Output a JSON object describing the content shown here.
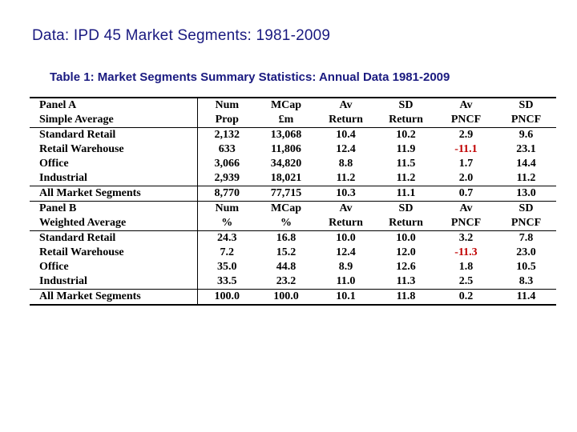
{
  "title": "Data: IPD 45 Market Segments: 1981-2009",
  "caption": "Table 1: Market Segments Summary Statistics: Annual Data 1981-2009",
  "colors": {
    "title": "#1a1a80",
    "negative": "#c00000"
  },
  "panel_a": {
    "header": [
      "Panel A",
      "Num",
      "MCap",
      "Av",
      "SD",
      "Av",
      "SD"
    ],
    "units": [
      "Simple Average",
      "Prop",
      "£m",
      "Return",
      "Return",
      "PNCF",
      "PNCF"
    ],
    "rows": [
      [
        "Standard Retail",
        "2,132",
        "13,068",
        "10.4",
        "10.2",
        "2.9",
        "9.6"
      ],
      [
        "Retail Warehouse",
        "633",
        "11,806",
        "12.4",
        "11.9",
        "-11.1",
        "23.1"
      ],
      [
        "Office",
        "3,066",
        "34,820",
        "8.8",
        "11.5",
        "1.7",
        "14.4"
      ],
      [
        "Industrial",
        "2,939",
        "18,021",
        "11.2",
        "11.2",
        "2.0",
        "11.2"
      ]
    ],
    "total": [
      "All Market Segments",
      "8,770",
      "77,715",
      "10.3",
      "11.1",
      "0.7",
      "13.0"
    ]
  },
  "panel_b": {
    "header": [
      "Panel B",
      "Num",
      "MCap",
      "Av",
      "SD",
      "Av",
      "SD"
    ],
    "units": [
      "Weighted Average",
      "%",
      "%",
      "Return",
      "Return",
      "PNCF",
      "PNCF"
    ],
    "rows": [
      [
        "Standard Retail",
        "24.3",
        "16.8",
        "10.0",
        "10.0",
        "3.2",
        "7.8"
      ],
      [
        "Retail Warehouse",
        "7.2",
        "15.2",
        "12.4",
        "12.0",
        "-11.3",
        "23.0"
      ],
      [
        "Office",
        "35.0",
        "44.8",
        "8.9",
        "12.6",
        "1.8",
        "10.5"
      ],
      [
        "Industrial",
        "33.5",
        "23.2",
        "11.0",
        "11.3",
        "2.5",
        "8.3"
      ]
    ],
    "total": [
      "All Market Segments",
      "100.0",
      "100.0",
      "10.1",
      "11.8",
      "0.2",
      "11.4"
    ]
  }
}
